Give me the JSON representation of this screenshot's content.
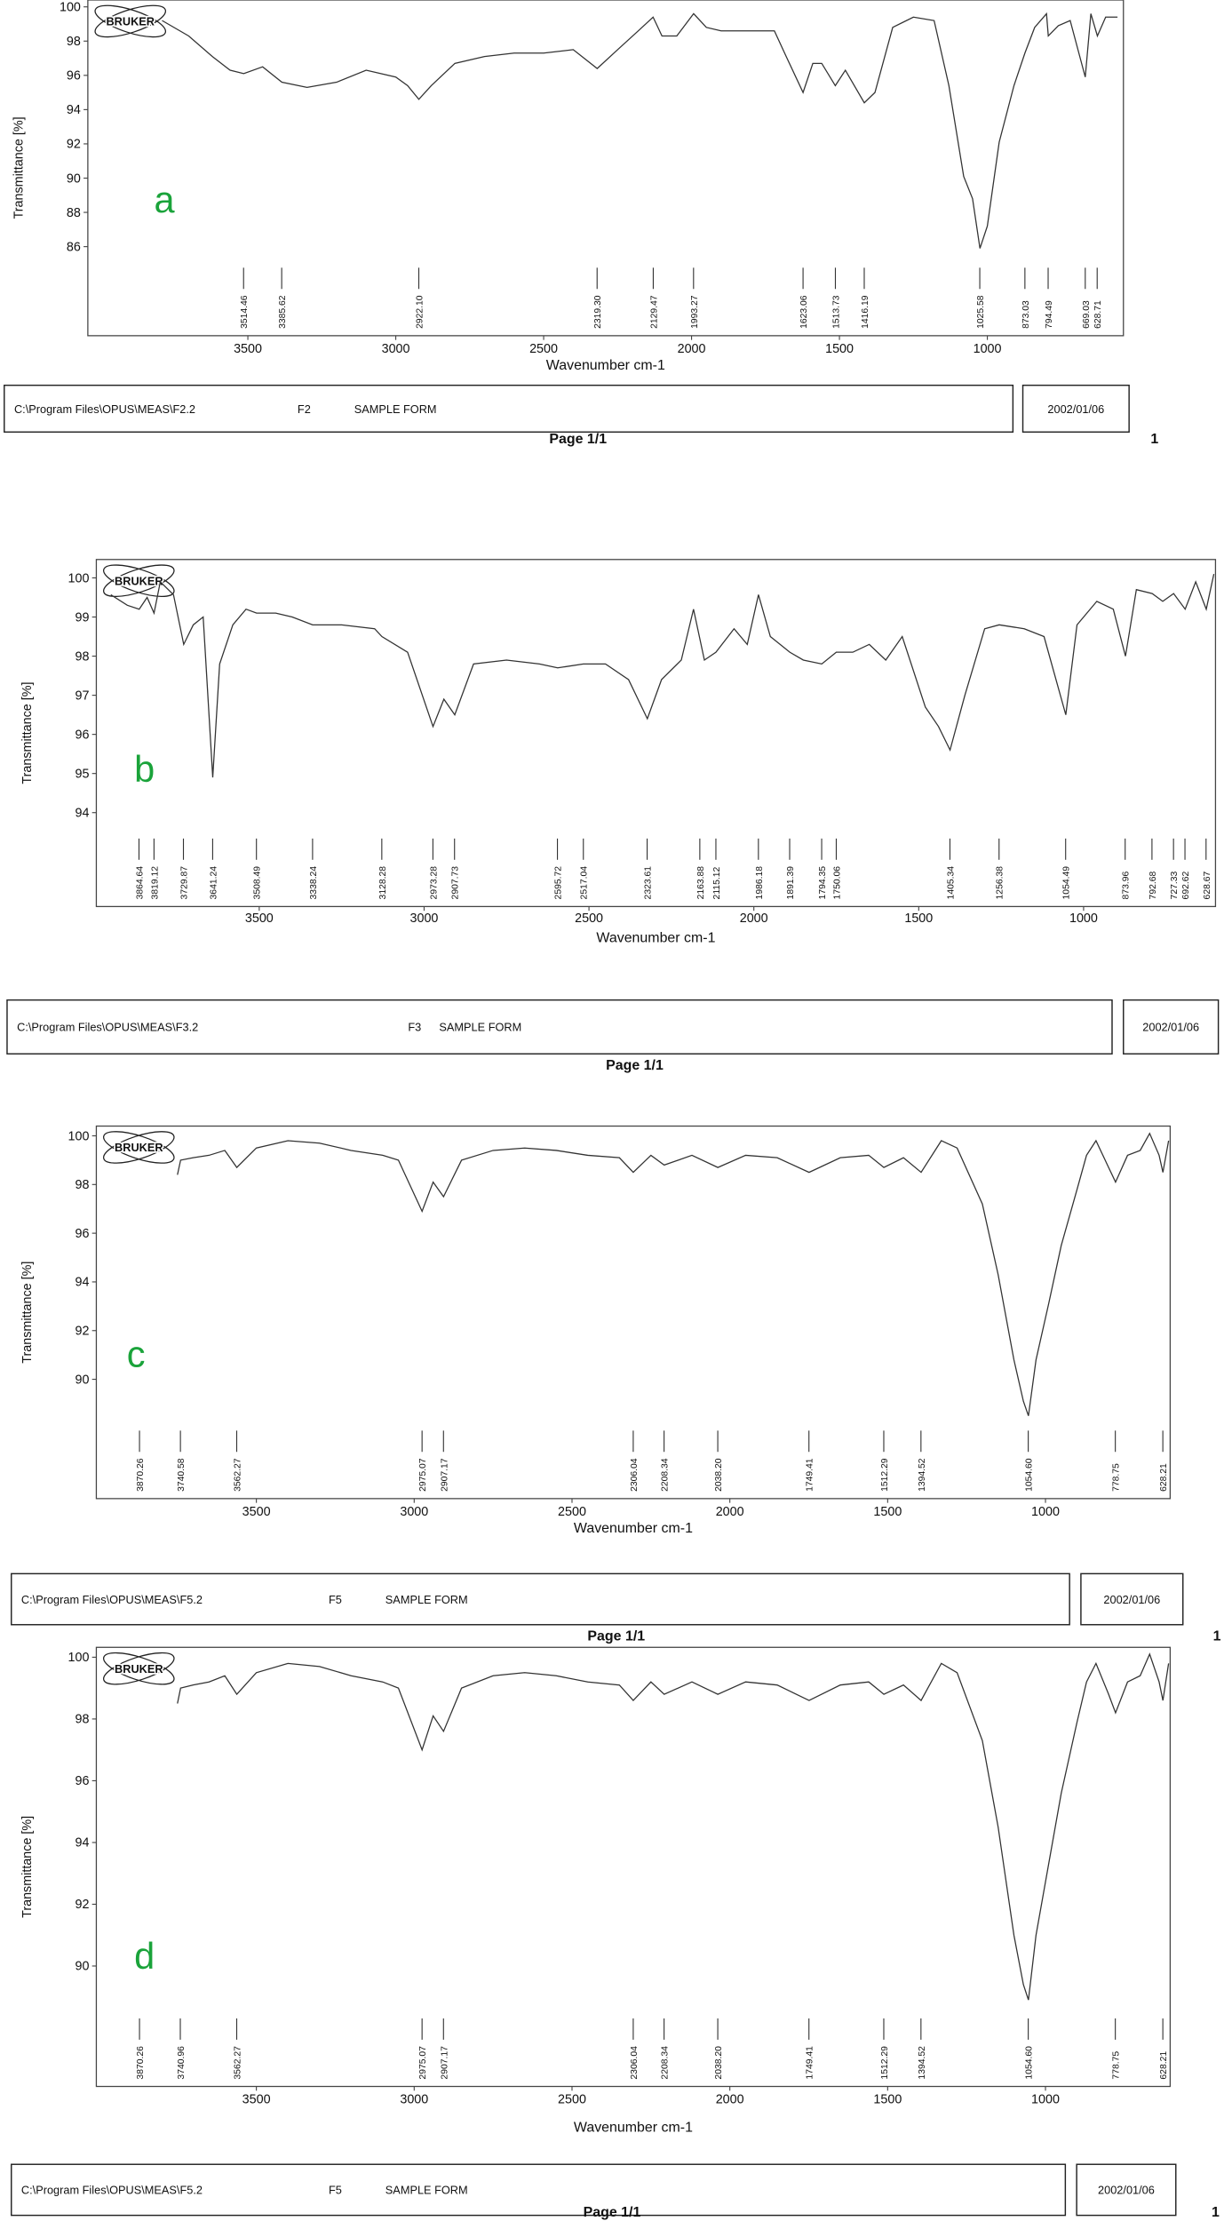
{
  "chart_data": [
    {
      "type": "line",
      "panel_label": "a",
      "logo": "BRUKER",
      "y_label": "Transmittance [%]",
      "x_label": "Wavenumber cm-1",
      "color": "#333333",
      "xlim": [
        4041,
        540
      ],
      "ylim": [
        80.8,
        100.4
      ],
      "xticks": [
        3500,
        3000,
        2500,
        2000,
        1500,
        1000
      ],
      "yticks": [
        86,
        88,
        90,
        92,
        94,
        96,
        98,
        100
      ],
      "x": [
        3790,
        3700,
        3620,
        3560,
        3514,
        3450,
        3385,
        3300,
        3200,
        3100,
        3000,
        2960,
        2922,
        2880,
        2800,
        2700,
        2600,
        2500,
        2400,
        2319,
        2250,
        2180,
        2130,
        2100,
        2050,
        1993,
        1950,
        1900,
        1800,
        1720,
        1680,
        1623,
        1590,
        1560,
        1514,
        1480,
        1416,
        1380,
        1320,
        1250,
        1180,
        1130,
        1080,
        1050,
        1025,
        1000,
        960,
        910,
        873,
        840,
        800,
        794,
        760,
        720,
        669,
        650,
        628,
        600,
        560
      ],
      "values": [
        99.2,
        98.3,
        97.1,
        96.3,
        96.1,
        96.5,
        95.6,
        95.3,
        95.6,
        96.3,
        95.9,
        95.4,
        94.6,
        95.4,
        96.7,
        97.1,
        97.3,
        97.3,
        97.5,
        96.4,
        97.5,
        98.6,
        99.4,
        98.3,
        98.3,
        99.6,
        98.8,
        98.6,
        98.6,
        98.6,
        97.1,
        95.0,
        96.7,
        96.7,
        95.4,
        96.3,
        94.4,
        95.0,
        98.8,
        99.4,
        99.2,
        95.4,
        90.1,
        88.8,
        85.9,
        87.2,
        92.1,
        95.4,
        97.3,
        98.8,
        99.6,
        98.3,
        98.9,
        99.2,
        95.9,
        99.6,
        98.3,
        99.4,
        99.4
      ],
      "peaks": [
        3514.46,
        3385.62,
        {
          "value": 2922.1,
          "label": "2922.10"
        },
        {
          "value": 2319.3,
          "label": "2319.30"
        },
        2129.47,
        1993.27,
        1623.06,
        1513.73,
        1416.19,
        1025.58,
        873.03,
        794.49,
        669.03,
        628.71
      ],
      "footer": {
        "path": "C:\\Program Files\\OPUS\\MEAS\\F2.2",
        "sample": "F2",
        "form": "SAMPLE FORM",
        "date": "2002/01/06",
        "page": "Page 1/1",
        "page_number": "1"
      }
    },
    {
      "type": "line",
      "panel_label": "b",
      "logo": "BRUKER",
      "y_label": "Transmittance [%]",
      "x_label": "Wavenumber cm-1",
      "color": "#333333",
      "xlim": [
        3994,
        600
      ],
      "ylim": [
        91.6,
        100.47
      ],
      "xticks": [
        3500,
        3000,
        2500,
        2000,
        1500,
        1000
      ],
      "yticks": [
        94,
        95,
        96,
        97,
        98,
        99,
        100
      ],
      "x": [
        3950,
        3900,
        3864,
        3840,
        3819,
        3800,
        3760,
        3729,
        3700,
        3670,
        3641,
        3620,
        3580,
        3540,
        3508,
        3450,
        3400,
        3338,
        3250,
        3150,
        3128,
        3050,
        2973,
        2940,
        2907,
        2850,
        2750,
        2650,
        2595,
        2517,
        2450,
        2380,
        2323,
        2280,
        2220,
        2183,
        2150,
        2115,
        2060,
        2020,
        1986,
        1950,
        1891,
        1850,
        1794,
        1750,
        1700,
        1650,
        1600,
        1550,
        1480,
        1440,
        1405,
        1360,
        1300,
        1256,
        1180,
        1120,
        1054,
        1020,
        960,
        910,
        873,
        840,
        792,
        760,
        727,
        692,
        660,
        628,
        605
      ],
      "values": [
        99.57,
        99.3,
        99.2,
        99.5,
        99.1,
        99.9,
        99.57,
        98.3,
        98.8,
        99.0,
        94.9,
        97.8,
        98.8,
        99.2,
        99.1,
        99.1,
        99.0,
        98.8,
        98.8,
        98.7,
        98.5,
        98.1,
        96.2,
        96.9,
        96.5,
        97.8,
        97.9,
        97.8,
        97.7,
        97.8,
        97.8,
        97.4,
        96.4,
        97.4,
        97.9,
        99.2,
        97.9,
        98.1,
        98.7,
        98.3,
        99.57,
        98.5,
        98.1,
        97.9,
        97.8,
        98.1,
        98.1,
        98.3,
        97.9,
        98.5,
        96.7,
        96.2,
        95.6,
        97.0,
        98.7,
        98.8,
        98.7,
        98.5,
        96.5,
        98.8,
        99.4,
        99.2,
        98.0,
        99.7,
        99.6,
        99.4,
        99.6,
        99.2,
        99.9,
        99.2,
        100.1
      ],
      "peaks": [
        3864.64,
        3819.12,
        3729.87,
        3641.24,
        3508.49,
        3338.24,
        3128.28,
        2973.28,
        2907.73,
        2595.72,
        2517.04,
        2323.61,
        2163.88,
        2115.12,
        1986.18,
        1891.39,
        1794.35,
        1750.06,
        1405.34,
        1256.38,
        1054.49,
        873.96,
        792.68,
        727.33,
        692.62,
        628.67
      ],
      "footer": {
        "path": "C:\\Program Files\\OPUS\\MEAS\\F3.2",
        "sample": "F3",
        "form": "SAMPLE FORM",
        "date": "2002/01/06",
        "page": "Page 1/1"
      }
    },
    {
      "type": "line",
      "panel_label": "c",
      "logo": "BRUKER",
      "y_label": "Transmittance [%]",
      "x_label": "Wavenumber cm-1",
      "color": "#333333",
      "xlim": [
        4007,
        605
      ],
      "ylim": [
        85.1,
        100.4
      ],
      "xticks": [
        3500,
        3000,
        2500,
        2000,
        1500,
        1000
      ],
      "yticks": [
        90,
        92,
        94,
        96,
        98,
        100
      ],
      "x": [
        3750,
        3740,
        3700,
        3650,
        3600,
        3562,
        3500,
        3400,
        3300,
        3200,
        3100,
        3050,
        2975,
        2940,
        2907,
        2850,
        2750,
        2650,
        2550,
        2450,
        2350,
        2306,
        2250,
        2208,
        2120,
        2038,
        1950,
        1850,
        1749,
        1650,
        1560,
        1512,
        1450,
        1394,
        1330,
        1280,
        1200,
        1150,
        1100,
        1070,
        1054,
        1030,
        990,
        950,
        900,
        870,
        840,
        800,
        778,
        740,
        700,
        670,
        640,
        628,
        610
      ],
      "values": [
        98.4,
        99.0,
        99.1,
        99.2,
        99.4,
        98.7,
        99.5,
        99.8,
        99.7,
        99.4,
        99.2,
        99.0,
        96.9,
        98.1,
        97.5,
        99.0,
        99.4,
        99.5,
        99.4,
        99.2,
        99.1,
        98.5,
        99.2,
        98.8,
        99.2,
        98.7,
        99.2,
        99.1,
        98.5,
        99.1,
        99.2,
        98.7,
        99.1,
        98.5,
        99.8,
        99.5,
        97.2,
        94.3,
        90.8,
        89.1,
        88.5,
        90.8,
        93.1,
        95.5,
        97.8,
        99.2,
        99.8,
        98.7,
        98.1,
        99.2,
        99.4,
        100.1,
        99.2,
        98.5,
        99.8
      ],
      "peaks": [
        3870.26,
        3740.58,
        3562.27,
        2975.07,
        2907.17,
        2306.04,
        2208.34,
        {
          "value": 2038.2,
          "label": "2038.20"
        },
        1749.41,
        1512.29,
        1394.52,
        {
          "value": 1054.6,
          "label": "1054.60"
        },
        778.75,
        628.21
      ],
      "footer": {
        "path": "C:\\Program Files\\OPUS\\MEAS\\F5.2",
        "sample": "F5",
        "form": "SAMPLE FORM",
        "date": "2002/01/06",
        "page": "Page 1/1",
        "page_number": "1"
      }
    },
    {
      "type": "line",
      "panel_label": "d",
      "logo": "BRUKER",
      "y_label": "Transmittance [%]",
      "x_label": "Wavenumber cm-1",
      "color": "#333333",
      "xlim": [
        4007,
        605
      ],
      "ylim": [
        86.1,
        100.32
      ],
      "xticks": [
        3500,
        3000,
        2500,
        2000,
        1500,
        1000
      ],
      "yticks": [
        90,
        92,
        94,
        96,
        98,
        100
      ],
      "x": [
        3750,
        3740,
        3700,
        3650,
        3600,
        3562,
        3500,
        3400,
        3300,
        3200,
        3100,
        3050,
        2975,
        2940,
        2907,
        2850,
        2750,
        2650,
        2550,
        2450,
        2350,
        2306,
        2250,
        2208,
        2120,
        2038,
        1950,
        1850,
        1749,
        1650,
        1560,
        1512,
        1450,
        1394,
        1330,
        1280,
        1200,
        1150,
        1100,
        1070,
        1054,
        1030,
        990,
        950,
        900,
        870,
        840,
        800,
        778,
        740,
        700,
        670,
        640,
        628,
        610
      ],
      "values": [
        98.5,
        99.0,
        99.1,
        99.2,
        99.4,
        98.8,
        99.5,
        99.8,
        99.7,
        99.4,
        99.2,
        99.0,
        97.0,
        98.1,
        97.6,
        99.0,
        99.4,
        99.5,
        99.4,
        99.2,
        99.1,
        98.6,
        99.2,
        98.8,
        99.2,
        98.8,
        99.2,
        99.1,
        98.6,
        99.1,
        99.2,
        98.8,
        99.1,
        98.6,
        99.8,
        99.5,
        97.3,
        94.5,
        91.0,
        89.4,
        88.9,
        91.0,
        93.3,
        95.6,
        97.9,
        99.2,
        99.8,
        98.8,
        98.2,
        99.2,
        99.4,
        100.1,
        99.2,
        98.6,
        99.8
      ],
      "peaks": [
        3870.26,
        3740.96,
        3562.27,
        2975.07,
        2907.17,
        2306.04,
        2208.34,
        {
          "value": 2038.2,
          "label": "2038.20"
        },
        1749.41,
        1512.29,
        1394.52,
        {
          "value": 1054.6,
          "label": "1054.60"
        },
        778.75,
        628.21
      ],
      "footer": {
        "path": "C:\\Program Files\\OPUS\\MEAS\\F5.2",
        "sample": "F5",
        "form": "SAMPLE FORM",
        "date": "2002/01/06",
        "page": "Page 1/1",
        "page_number": "1"
      }
    }
  ]
}
